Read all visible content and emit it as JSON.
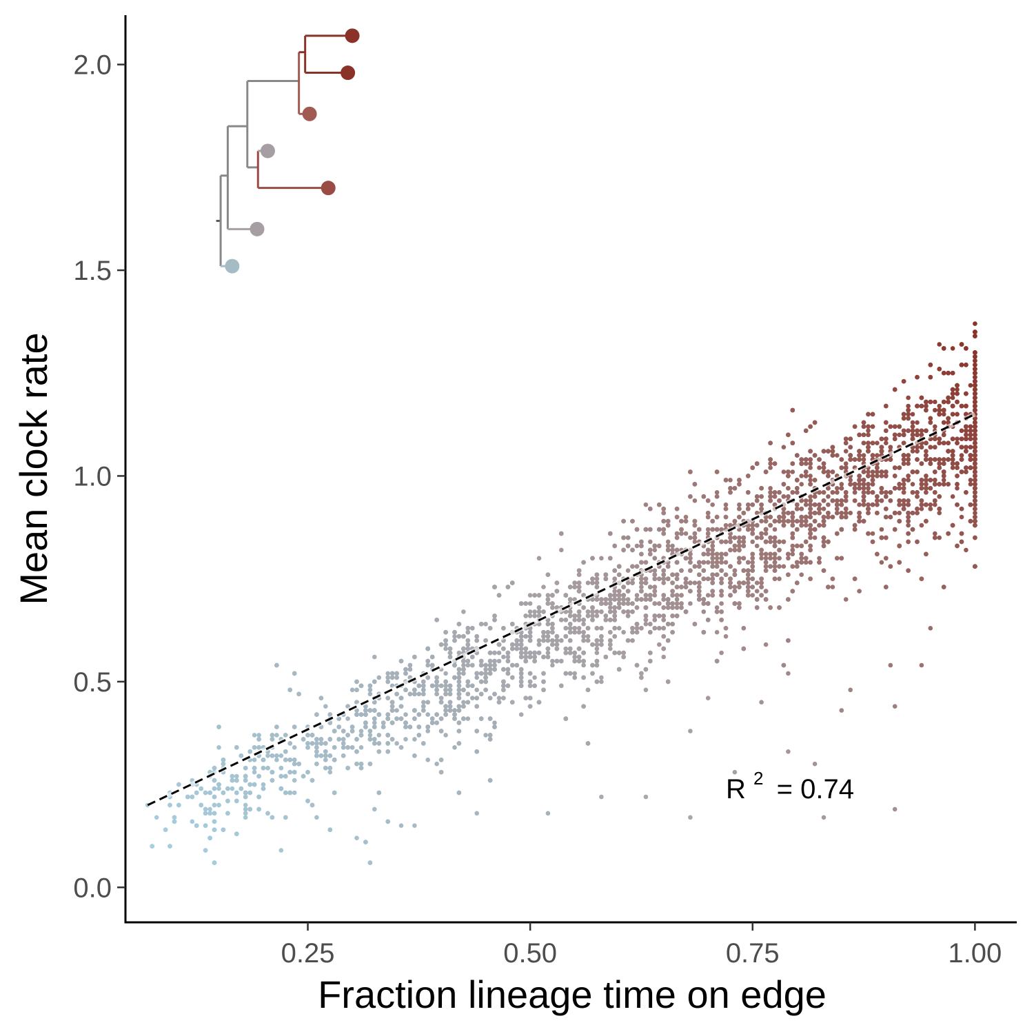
{
  "chart_data": {
    "type": "scatter",
    "title": "",
    "xlabel": "Fraction lineage time on edge",
    "ylabel": "Mean clock rate",
    "xlim": [
      0.045,
      1.047
    ],
    "ylim": [
      -0.085,
      2.12
    ],
    "x_ticks": [
      0.25,
      0.5,
      0.75,
      1.0
    ],
    "x_tick_labels": [
      "0.25",
      "0.50",
      "0.75",
      "1.00"
    ],
    "y_ticks": [
      0.0,
      0.5,
      1.0,
      1.5,
      2.0
    ],
    "y_tick_labels": [
      "0.0",
      "0.5",
      "1.0",
      "1.5",
      "2.0"
    ],
    "grid": false,
    "legend": "none",
    "color_scale": {
      "low": "#a6cfe0",
      "mid": "#a69ea2",
      "high": "#8a3228"
    },
    "fit_line": {
      "style": "dashed",
      "color": "#000000",
      "x": [
        0.07,
        1.0
      ],
      "y": [
        0.2,
        1.15
      ]
    },
    "annotation": {
      "r_label": "R",
      "superscript": "2",
      "value_text": "= 0.74",
      "x": 0.72,
      "y": 0.2
    },
    "series": [
      {
        "points_generated_to_match_density": true,
        "main_cloud": {
          "count": 6500,
          "x_range": [
            0.07,
            1.0
          ],
          "line_slope": 1.0215,
          "line_intercept": 0.1285
        },
        "outliers": [
          [
            0.26,
            0.17
          ],
          [
            0.305,
            0.12
          ],
          [
            0.355,
            0.15
          ],
          [
            0.44,
            0.18
          ],
          [
            0.52,
            0.18
          ],
          [
            0.58,
            0.22
          ],
          [
            0.63,
            0.22
          ],
          [
            0.68,
            0.17
          ],
          [
            0.73,
            0.28
          ],
          [
            0.79,
            0.33
          ],
          [
            0.82,
            0.3
          ],
          [
            0.83,
            0.17
          ],
          [
            0.85,
            0.43
          ],
          [
            0.91,
            0.19
          ],
          [
            0.91,
            0.44
          ],
          [
            0.86,
            0.48
          ],
          [
            0.905,
            0.54
          ],
          [
            0.94,
            0.54
          ],
          [
            0.95,
            0.63
          ],
          [
            0.99,
            0.82
          ],
          [
            0.76,
            0.45
          ],
          [
            0.79,
            0.52
          ],
          [
            0.68,
            0.38
          ],
          [
            0.7,
            0.46
          ],
          [
            0.74,
            0.58
          ]
        ]
      }
    ],
    "inset_tree": {
      "tips": [
        {
          "x": 0.3,
          "y": 2.07,
          "color": "#8a3228"
        },
        {
          "x": 0.295,
          "y": 1.98,
          "color": "#8a3228"
        },
        {
          "x": 0.252,
          "y": 1.88,
          "color": "#a05a52"
        },
        {
          "x": 0.205,
          "y": 1.79,
          "color": "#a69ea2"
        },
        {
          "x": 0.273,
          "y": 1.7,
          "color": "#9a4b44"
        },
        {
          "x": 0.193,
          "y": 1.6,
          "color": "#a69ea2"
        },
        {
          "x": 0.165,
          "y": 1.51,
          "color": "#a6bcc5"
        }
      ]
    }
  }
}
